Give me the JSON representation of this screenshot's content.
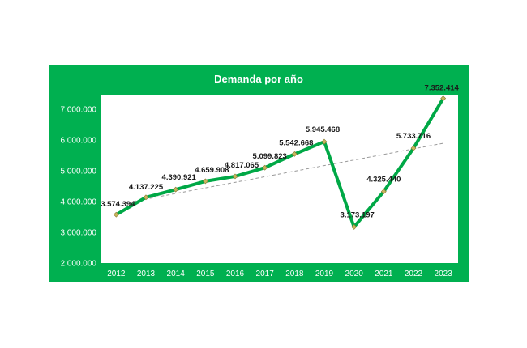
{
  "chart_data": {
    "type": "line",
    "title": "Demanda por año",
    "xlabel": "",
    "ylabel": "",
    "categories": [
      "2012",
      "2013",
      "2014",
      "2015",
      "2016",
      "2017",
      "2018",
      "2019",
      "2020",
      "2021",
      "2022",
      "2023"
    ],
    "series": [
      {
        "values": [
          3574394,
          4137225,
          4390921,
          4659908,
          4817065,
          5099823,
          5542668,
          5945468,
          3173197,
          4325440,
          5733716,
          7352414
        ],
        "labels": [
          "3.574.394",
          "4.137.225",
          "4.390.921",
          "4.659.908",
          "4.817.065",
          "5.099.823",
          "5.542.668",
          "5.945.468",
          "3.173.197",
          "4.325.440",
          "5.733.716",
          "7.352.414"
        ]
      }
    ],
    "trendline": {
      "type": "linear",
      "style": "dashed"
    },
    "ylim": [
      2000000,
      7500000
    ],
    "yticks": [
      2000000,
      3000000,
      4000000,
      5000000,
      6000000,
      7000000
    ],
    "ytick_labels": [
      "2.000.000",
      "3.000.000",
      "4.000.000",
      "5.000.000",
      "6.000.000",
      "7.000.000"
    ],
    "grid": false,
    "legend": "none",
    "colors": {
      "frame_background": "#00b050",
      "plot_background": "#ffffff",
      "line": "#00a846",
      "marker": "#c8b560",
      "trendline": "#9a9a9a",
      "text": "#ffffff"
    }
  }
}
